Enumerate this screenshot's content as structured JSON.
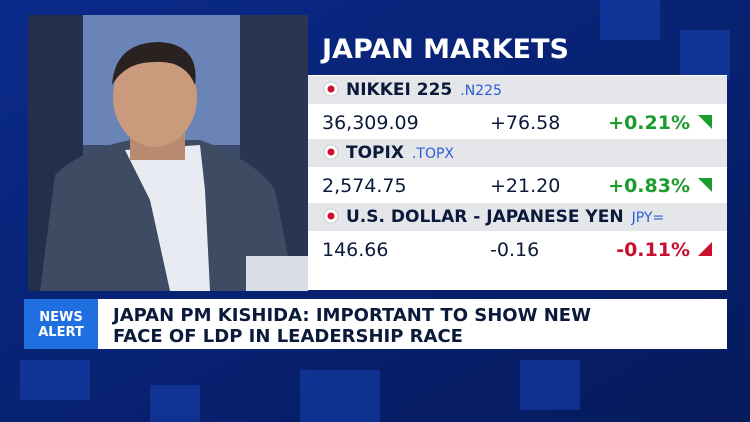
{
  "markets": {
    "title": "JAPAN MARKETS",
    "rows": [
      {
        "name": "NIKKEI 225",
        "ticker": ".N225",
        "price": "36,309.09",
        "change": "+76.58",
        "percent": "+0.21%",
        "direction": "up"
      },
      {
        "name": "TOPIX",
        "ticker": ".TOPX",
        "price": "2,574.75",
        "change": "+21.20",
        "percent": "+0.83%",
        "direction": "up"
      },
      {
        "name": "U.S. DOLLAR - JAPANESE YEN",
        "ticker": "JPY=",
        "price": "146.66",
        "change": "-0.16",
        "percent": "-0.11%",
        "direction": "down"
      }
    ]
  },
  "alert": {
    "label": [
      "NEWS",
      "ALERT"
    ],
    "headline": [
      "JAPAN PM KISHIDA: IMPORTANT TO SHOW NEW",
      "FACE OF LDP IN LEADERSHIP RACE"
    ]
  }
}
